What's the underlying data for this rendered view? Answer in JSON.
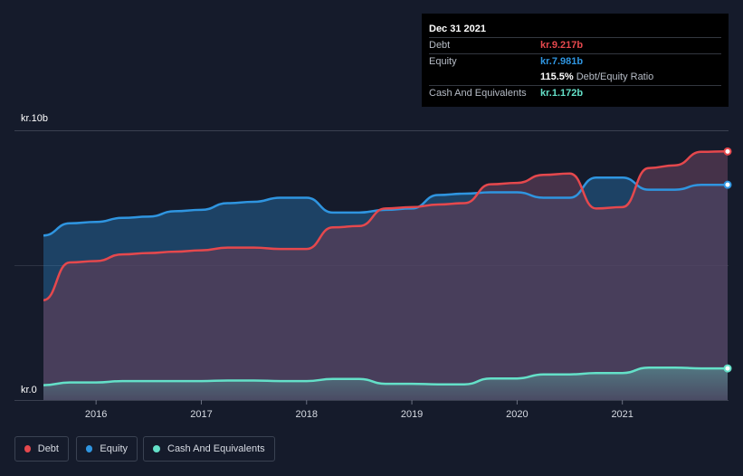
{
  "tooltip": {
    "date": "Dec 31 2021",
    "rows": [
      {
        "label": "Debt",
        "value": "kr.9.217b",
        "color": "#e5484d"
      },
      {
        "label": "Equity",
        "value": "kr.7.981b",
        "color": "#2f95e0"
      },
      {
        "label": "",
        "value": "115.5%",
        "sub": "Debt/Equity Ratio",
        "color": "#ffffff"
      },
      {
        "label": "Cash And Equivalents",
        "value": "kr.1.172b",
        "color": "#64e0c8"
      }
    ]
  },
  "legend": [
    {
      "label": "Debt",
      "color": "#e5484d"
    },
    {
      "label": "Equity",
      "color": "#2f95e0"
    },
    {
      "label": "Cash And Equivalents",
      "color": "#64e0c8"
    }
  ],
  "chart_data": {
    "type": "area",
    "y_top_label": "kr.10b",
    "y_bottom_label": "kr.0",
    "ylim": [
      0,
      10
    ],
    "xlim": [
      2015.5,
      2022.0
    ],
    "x_ticks": [
      2016,
      2017,
      2018,
      2019,
      2020,
      2021
    ],
    "x_tick_labels": [
      "2016",
      "2017",
      "2018",
      "2019",
      "2020",
      "2021"
    ],
    "series": [
      {
        "name": "Debt",
        "color": "#e5484d",
        "points": [
          [
            2015.5,
            3.7
          ],
          [
            2015.75,
            5.1
          ],
          [
            2016.0,
            5.15
          ],
          [
            2016.25,
            5.4
          ],
          [
            2016.5,
            5.45
          ],
          [
            2016.75,
            5.5
          ],
          [
            2017.0,
            5.55
          ],
          [
            2017.25,
            5.65
          ],
          [
            2017.5,
            5.65
          ],
          [
            2017.75,
            5.6
          ],
          [
            2018.0,
            5.6
          ],
          [
            2018.25,
            6.4
          ],
          [
            2018.5,
            6.45
          ],
          [
            2018.75,
            7.1
          ],
          [
            2019.0,
            7.15
          ],
          [
            2019.25,
            7.25
          ],
          [
            2019.5,
            7.3
          ],
          [
            2019.75,
            8.0
          ],
          [
            2020.0,
            8.05
          ],
          [
            2020.25,
            8.35
          ],
          [
            2020.5,
            8.4
          ],
          [
            2020.75,
            7.1
          ],
          [
            2021.0,
            7.15
          ],
          [
            2021.25,
            8.6
          ],
          [
            2021.5,
            8.7
          ],
          [
            2021.75,
            9.2
          ],
          [
            2022.0,
            9.217
          ]
        ]
      },
      {
        "name": "Equity",
        "color": "#2f95e0",
        "points": [
          [
            2015.5,
            6.1
          ],
          [
            2015.75,
            6.55
          ],
          [
            2016.0,
            6.6
          ],
          [
            2016.25,
            6.75
          ],
          [
            2016.5,
            6.8
          ],
          [
            2016.75,
            7.0
          ],
          [
            2017.0,
            7.05
          ],
          [
            2017.25,
            7.3
          ],
          [
            2017.5,
            7.35
          ],
          [
            2017.75,
            7.5
          ],
          [
            2018.0,
            7.5
          ],
          [
            2018.25,
            6.95
          ],
          [
            2018.5,
            6.95
          ],
          [
            2018.75,
            7.05
          ],
          [
            2019.0,
            7.1
          ],
          [
            2019.25,
            7.6
          ],
          [
            2019.5,
            7.65
          ],
          [
            2019.75,
            7.7
          ],
          [
            2020.0,
            7.7
          ],
          [
            2020.25,
            7.5
          ],
          [
            2020.5,
            7.5
          ],
          [
            2020.75,
            8.25
          ],
          [
            2021.0,
            8.25
          ],
          [
            2021.25,
            7.8
          ],
          [
            2021.5,
            7.8
          ],
          [
            2021.75,
            7.98
          ],
          [
            2022.0,
            7.981
          ]
        ]
      },
      {
        "name": "Cash And Equivalents",
        "color": "#64e0c8",
        "points": [
          [
            2015.5,
            0.55
          ],
          [
            2015.75,
            0.65
          ],
          [
            2016.0,
            0.65
          ],
          [
            2016.25,
            0.7
          ],
          [
            2016.5,
            0.7
          ],
          [
            2016.75,
            0.7
          ],
          [
            2017.0,
            0.7
          ],
          [
            2017.25,
            0.72
          ],
          [
            2017.5,
            0.72
          ],
          [
            2017.75,
            0.7
          ],
          [
            2018.0,
            0.7
          ],
          [
            2018.25,
            0.78
          ],
          [
            2018.5,
            0.78
          ],
          [
            2018.75,
            0.6
          ],
          [
            2019.0,
            0.6
          ],
          [
            2019.25,
            0.58
          ],
          [
            2019.5,
            0.58
          ],
          [
            2019.75,
            0.8
          ],
          [
            2020.0,
            0.8
          ],
          [
            2020.25,
            0.95
          ],
          [
            2020.5,
            0.95
          ],
          [
            2020.75,
            1.0
          ],
          [
            2021.0,
            1.0
          ],
          [
            2021.25,
            1.2
          ],
          [
            2021.5,
            1.2
          ],
          [
            2021.75,
            1.17
          ],
          [
            2022.0,
            1.172
          ]
        ]
      }
    ]
  }
}
